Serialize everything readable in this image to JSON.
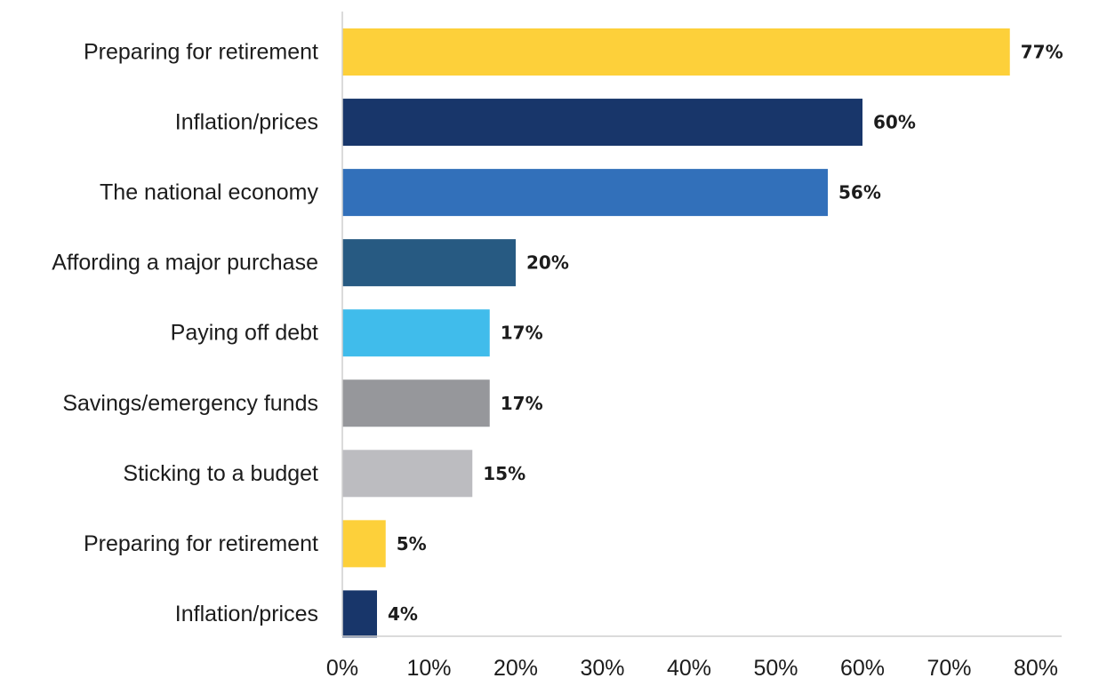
{
  "chart_data": {
    "type": "bar",
    "orientation": "horizontal",
    "categories": [
      "Preparing for retirement",
      "Inflation/prices",
      "The national economy",
      "Affording a major purchase",
      "Paying off debt",
      "Savings/emergency funds",
      "Sticking to a budget",
      "Preparing for retirement",
      "Inflation/prices"
    ],
    "values": [
      77,
      60,
      56,
      20,
      17,
      17,
      15,
      5,
      4
    ],
    "value_labels": [
      "77%",
      "60%",
      "56%",
      "20%",
      "17%",
      "17%",
      "15%",
      "5%",
      "4%"
    ],
    "colors": [
      "#fdd03a",
      "#18366a",
      "#3270ba",
      "#275a82",
      "#40bceb",
      "#96979b",
      "#bcbcc0",
      "#fdd03a",
      "#18366a"
    ],
    "x_ticks": [
      "0%",
      "10%",
      "20%",
      "30%",
      "40%",
      "50%",
      "60%",
      "70%",
      "80%"
    ],
    "xlim": [
      0,
      80
    ],
    "title": "",
    "xlabel": "",
    "ylabel": "",
    "grid": false,
    "legend": "none"
  }
}
